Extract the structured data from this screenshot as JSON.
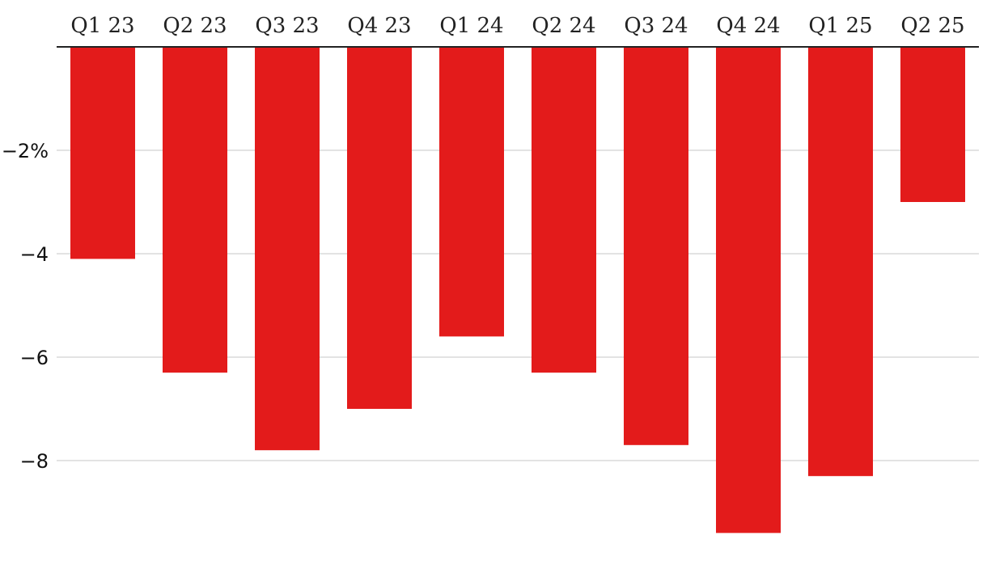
{
  "chart_data": {
    "type": "bar",
    "title": "",
    "xlabel": "",
    "ylabel": "",
    "categories": [
      "Q1 23",
      "Q2 23",
      "Q3 23",
      "Q4 23",
      "Q1 24",
      "Q2 24",
      "Q3 24",
      "Q4 24",
      "Q1 25",
      "Q2 25"
    ],
    "values": [
      -4.1,
      -6.3,
      -7.8,
      -7.0,
      -5.6,
      -6.3,
      -7.7,
      -9.4,
      -8.3,
      -3.0
    ],
    "ylim": [
      -10,
      0
    ],
    "y_ticks": [
      {
        "value": -2,
        "label": "−2%"
      },
      {
        "value": -4,
        "label": "−4"
      },
      {
        "value": -6,
        "label": "−6"
      },
      {
        "value": -8,
        "label": "−8"
      }
    ],
    "category_axis_position": "top",
    "grid": true,
    "bar_color": "#e31b1b"
  }
}
